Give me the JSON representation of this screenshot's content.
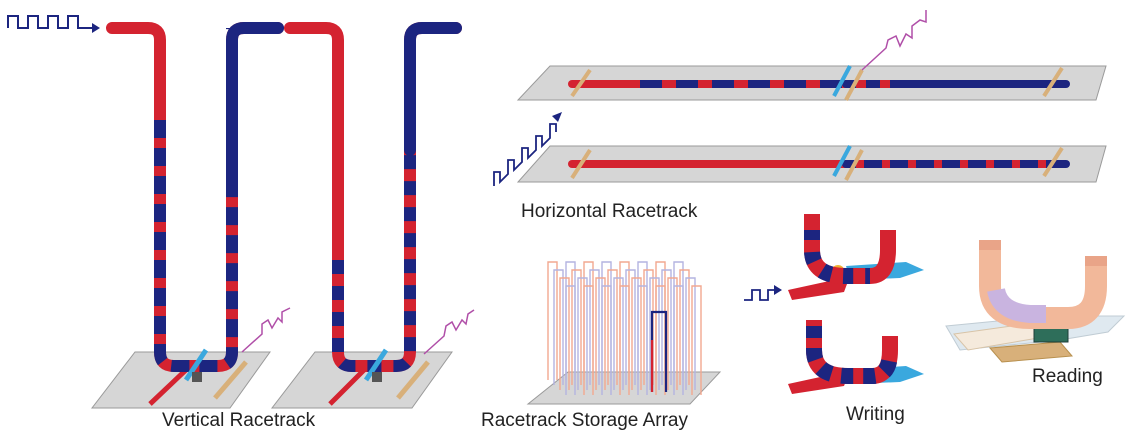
{
  "captions": {
    "vertical": "Vertical Racetrack",
    "horizontal": "Horizontal Racetrack",
    "array": "Racetrack Storage Array",
    "writing": "Writing",
    "reading": "Reading"
  },
  "colors": {
    "domain_red": "#d42330",
    "domain_blue": "#1c2580",
    "substrate": "#d6d6d6",
    "substrate_edge": "#9a9a9a",
    "pulse": "#1c2580",
    "read_signal": "#b04fa8",
    "contact_tan": "#d8b07a",
    "write_cyan": "#3aa8de",
    "reader_peach": "#f2b89a"
  }
}
